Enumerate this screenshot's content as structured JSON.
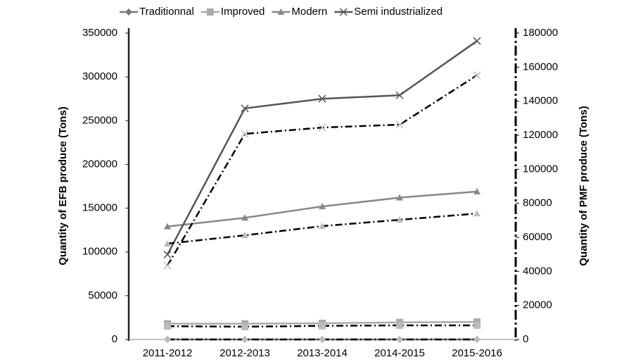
{
  "chart_data": {
    "type": "line",
    "categories": [
      "2011-2012",
      "2012-2013",
      "2013-2014",
      "2014-2015",
      "2015-2016"
    ],
    "ylabel": "Quantity of EFB produce  (Tons)",
    "y2label": "Quantity of PMF produce (Tons)",
    "ylim": [
      0,
      350000
    ],
    "yticks": [
      0,
      50000,
      100000,
      150000,
      200000,
      250000,
      300000,
      350000
    ],
    "y2lim": [
      0,
      180000
    ],
    "y2ticks": [
      0,
      20000,
      40000,
      60000,
      80000,
      100000,
      120000,
      140000,
      160000,
      180000
    ],
    "legend": "top",
    "series": [
      {
        "name": "Traditionnal",
        "color": "#777777",
        "marker": "diamond",
        "axis": "y",
        "values": [
          0,
          0,
          0,
          0,
          0
        ]
      },
      {
        "name": "Improved",
        "color": "#aaaaaa",
        "marker": "square",
        "axis": "y",
        "values": [
          18000,
          18000,
          18500,
          19500,
          20000
        ]
      },
      {
        "name": "Modern",
        "color": "#888888",
        "marker": "triangle",
        "axis": "y",
        "values": [
          129000,
          139000,
          152000,
          162000,
          169000
        ]
      },
      {
        "name": "Semi industrialized",
        "color": "#555555",
        "marker": "x",
        "axis": "y",
        "values": [
          97000,
          264000,
          275000,
          279000,
          341000
        ]
      },
      {
        "name": "Traditionnal",
        "color": "#000000",
        "marker": "diamond",
        "axis": "y2",
        "values": [
          0,
          0,
          0,
          0,
          0
        ]
      },
      {
        "name": "Improved",
        "color": "#000000",
        "marker": "square",
        "axis": "y2",
        "values": [
          7800,
          7500,
          8000,
          8300,
          8300
        ]
      },
      {
        "name": "Modern",
        "color": "#000000",
        "marker": "triangle",
        "axis": "y2",
        "values": [
          56300,
          61200,
          66600,
          70300,
          74000
        ]
      },
      {
        "name": "Semi industrialized",
        "color": "#000000",
        "marker": "x",
        "axis": "y2",
        "values": [
          43400,
          120800,
          124500,
          126200,
          155200
        ]
      }
    ]
  }
}
